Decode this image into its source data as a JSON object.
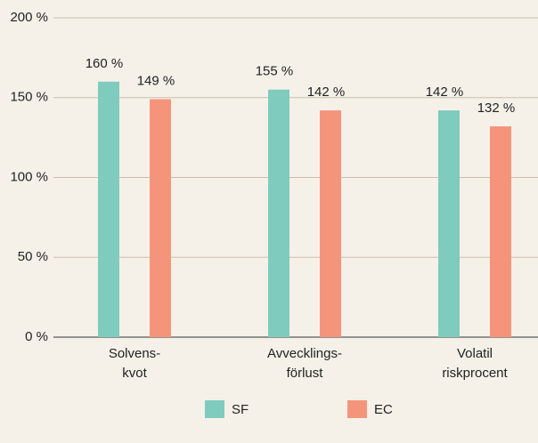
{
  "chart_data": {
    "type": "bar",
    "categories": [
      "Solvens-\nkvot",
      "Avvecklings-\nförlust",
      "Volatil\nriskprocent"
    ],
    "series": [
      {
        "name": "SF",
        "color": "#7fcbbd",
        "values": [
          160,
          155,
          142
        ],
        "value_labels": [
          "160 %",
          "155 %",
          "142 %"
        ]
      },
      {
        "name": "EC",
        "color": "#f4957b",
        "values": [
          149,
          142,
          132
        ],
        "value_labels": [
          "149 %",
          "142 %",
          "132 %"
        ]
      }
    ],
    "ylim": [
      0,
      200
    ],
    "yticks": [
      {
        "value": 0,
        "label": "0 %"
      },
      {
        "value": 50,
        "label": "50 %"
      },
      {
        "value": 100,
        "label": "100 %"
      },
      {
        "value": 150,
        "label": "150 %"
      },
      {
        "value": 200,
        "label": "200 %"
      }
    ],
    "grid": true,
    "legend": "bottom"
  }
}
